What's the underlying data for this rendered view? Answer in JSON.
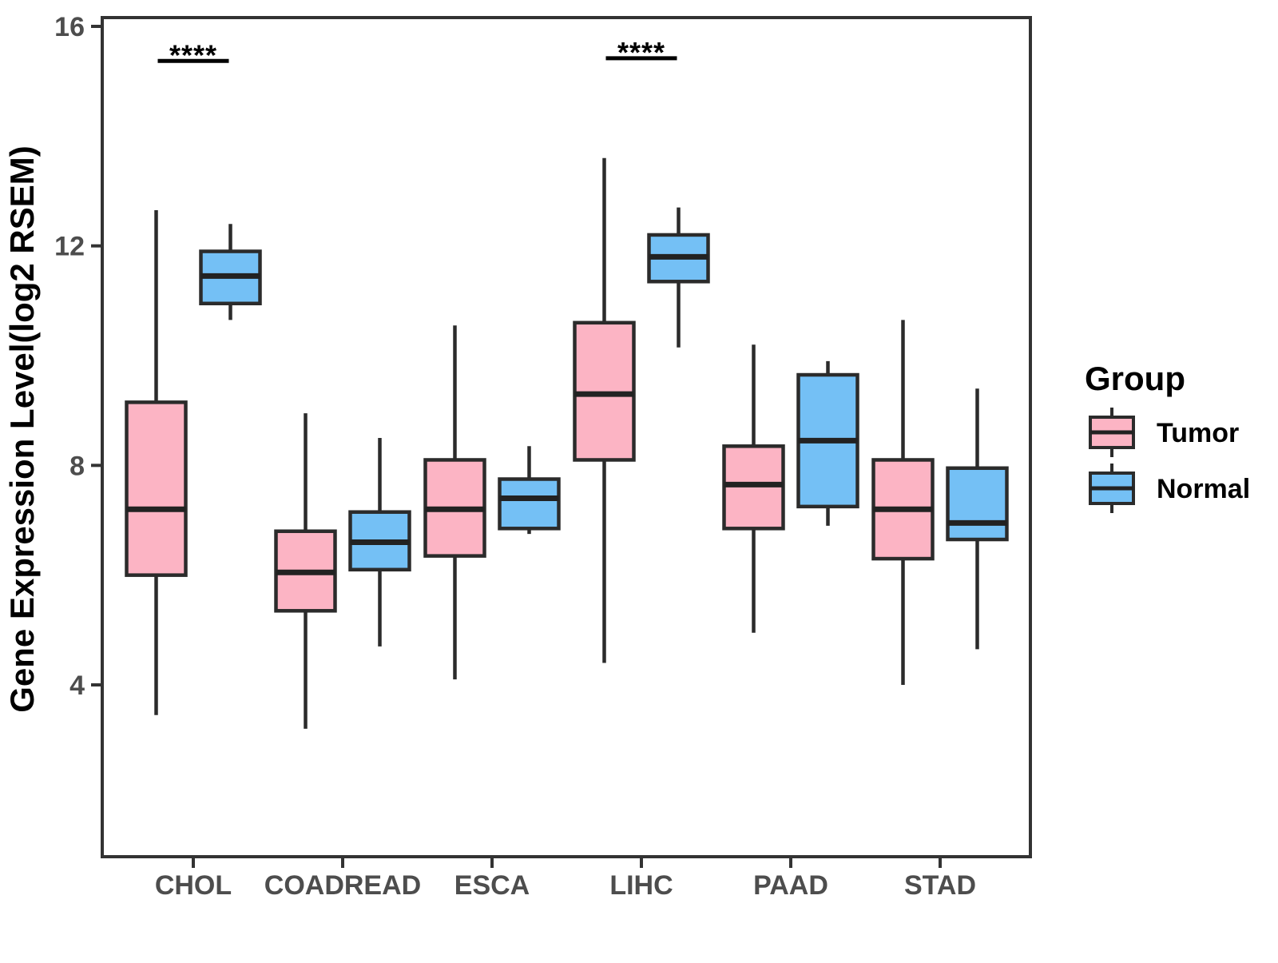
{
  "figure": {
    "background": "#ffffff"
  },
  "axes": {
    "y": {
      "label": "Gene Expression Level(log2 RSEM)",
      "ticks": [
        16,
        12,
        8,
        4
      ]
    },
    "x": {
      "label": "",
      "categories": [
        "CHOL",
        "COADREAD",
        "ESCA",
        "LIHC",
        "PAAD",
        "STAD"
      ]
    }
  },
  "legend": {
    "title": "Group",
    "items": [
      {
        "label": "Tumor",
        "color": "#FCB4C4"
      },
      {
        "label": "Normal",
        "color": "#74C0F5"
      }
    ]
  },
  "colors": {
    "tumor_fill": "#FCB4C4",
    "normal_fill": "#74C0F5",
    "box_border": "#2B2B2B",
    "median_line": "#222222",
    "axis_line": "#333333",
    "tick_label": "#4d4d4d",
    "annotation": "#000000",
    "background": "#FFFFFF"
  },
  "chart_data": {
    "type": "boxplot",
    "title": "",
    "xlabel": "",
    "ylabel": "Gene Expression Level(log2 RSEM)",
    "y_ticks": [
      16,
      12,
      8,
      4
    ],
    "ylim": [
      0.85,
      16.15
    ],
    "grid": false,
    "legend_position": "right",
    "categories": [
      "CHOL",
      "COADREAD",
      "ESCA",
      "LIHC",
      "PAAD",
      "STAD"
    ],
    "series": [
      {
        "name": "Tumor",
        "fill": "#FCB4C4",
        "boxes": [
          {
            "category": "CHOL",
            "whisker_low": 3.45,
            "q1": 6.0,
            "median": 7.2,
            "q3": 9.15,
            "whisker_high": 12.65
          },
          {
            "category": "COADREAD",
            "whisker_low": 3.2,
            "q1": 5.35,
            "median": 6.05,
            "q3": 6.8,
            "whisker_high": 8.95
          },
          {
            "category": "ESCA",
            "whisker_low": 4.1,
            "q1": 6.35,
            "median": 7.2,
            "q3": 8.1,
            "whisker_high": 10.55
          },
          {
            "category": "LIHC",
            "whisker_low": 4.4,
            "q1": 8.1,
            "median": 9.3,
            "q3": 10.6,
            "whisker_high": 13.6
          },
          {
            "category": "PAAD",
            "whisker_low": 4.95,
            "q1": 6.85,
            "median": 7.65,
            "q3": 8.35,
            "whisker_high": 10.2
          },
          {
            "category": "STAD",
            "whisker_low": 4.0,
            "q1": 6.3,
            "median": 7.2,
            "q3": 8.1,
            "whisker_high": 10.65
          }
        ]
      },
      {
        "name": "Normal",
        "fill": "#74C0F5",
        "boxes": [
          {
            "category": "CHOL",
            "whisker_low": 10.65,
            "q1": 10.95,
            "median": 11.45,
            "q3": 11.9,
            "whisker_high": 12.4
          },
          {
            "category": "COADREAD",
            "whisker_low": 4.7,
            "q1": 6.1,
            "median": 6.6,
            "q3": 7.15,
            "whisker_high": 8.5
          },
          {
            "category": "ESCA",
            "whisker_low": 6.75,
            "q1": 6.85,
            "median": 7.4,
            "q3": 7.75,
            "whisker_high": 8.35
          },
          {
            "category": "LIHC",
            "whisker_low": 10.15,
            "q1": 11.35,
            "median": 11.8,
            "q3": 12.2,
            "whisker_high": 12.7
          },
          {
            "category": "PAAD",
            "whisker_low": 6.9,
            "q1": 7.25,
            "median": 8.45,
            "q3": 9.65,
            "whisker_high": 9.9
          },
          {
            "category": "STAD",
            "whisker_low": 4.65,
            "q1": 6.65,
            "median": 6.95,
            "q3": 7.95,
            "whisker_high": 9.4
          }
        ]
      }
    ],
    "annotations": [
      {
        "category": "CHOL",
        "text": "****",
        "y": 15.37
      },
      {
        "category": "LIHC",
        "text": "****",
        "y": 15.42
      }
    ]
  }
}
